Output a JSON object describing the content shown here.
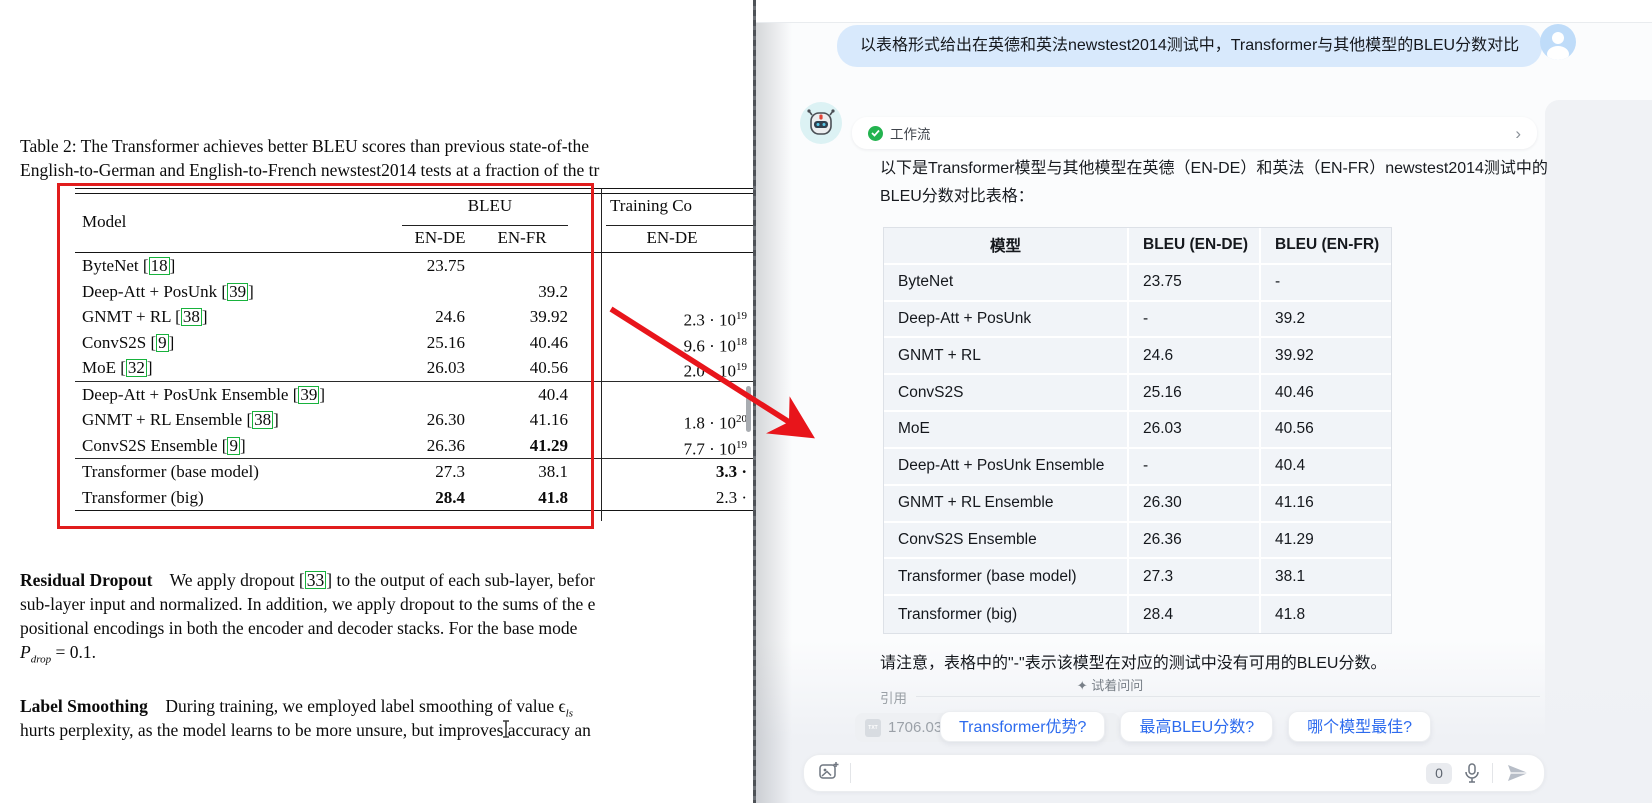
{
  "paper": {
    "caption": [
      "Table 2: The Transformer achieves better BLEU scores than previous state-of-the",
      "English-to-German and English-to-French newstest2014 tests at a fraction of the tr"
    ],
    "table": {
      "model_label": "Model",
      "bleu_label": "BLEU",
      "training_label": "Training Co",
      "subheads": [
        "EN-DE",
        "EN-FR",
        "EN-DE"
      ],
      "groups": [
        [
          {
            "m": "ByteNet",
            "c": "18",
            "d": "23.75",
            "f": "",
            "t": "",
            "e": ""
          },
          {
            "m": "Deep-Att + PosUnk",
            "c": "39",
            "d": "",
            "f": "39.2",
            "t": "",
            "e": ""
          },
          {
            "m": "GNMT + RL",
            "c": "38",
            "d": "24.6",
            "f": "39.92",
            "t": "2.3 · 10",
            "e": "19"
          },
          {
            "m": "ConvS2S",
            "c": "9",
            "d": "25.16",
            "f": "40.46",
            "t": "9.6 · 10",
            "e": "18"
          },
          {
            "m": "MoE",
            "c": "32",
            "d": "26.03",
            "f": "40.56",
            "t": "2.0 · 10",
            "e": "19"
          }
        ],
        [
          {
            "m": "Deep-Att + PosUnk Ensemble",
            "c": "39",
            "d": "",
            "f": "40.4",
            "t": "",
            "e": ""
          },
          {
            "m": "GNMT + RL Ensemble",
            "c": "38",
            "d": "26.30",
            "f": "41.16",
            "t": "1.8 · 10",
            "e": "20"
          },
          {
            "m": "ConvS2S Ensemble",
            "c": "9",
            "d": "26.36",
            "f": "41.29",
            "fb": 1,
            "t": "7.7 · 10",
            "e": "19"
          }
        ],
        [
          {
            "m": "Transformer (base model)",
            "c": "",
            "d": "27.3",
            "f": "38.1",
            "t": "3.3 ·",
            "tb": 1,
            "e": ""
          },
          {
            "m": "Transformer (big)",
            "c": "",
            "d": "28.4",
            "db": 1,
            "f": "41.8",
            "fb": 1,
            "t": "2.3 ·",
            "e": ""
          }
        ]
      ]
    },
    "residual": {
      "head": "Residual Dropout",
      "l1a": "We apply dropout [",
      "cite": "33",
      "l1b": "] to the output of each sub-layer, befor",
      "l2": "sub-layer input and normalized. In addition, we apply dropout to the sums of the e",
      "l3": "positional encodings in both the encoder and decoder stacks. For the base mode",
      "l4a": "P",
      "l4sub": "drop",
      "l4b": " = 0.1."
    },
    "label_smoothing": {
      "head": "Label Smoothing",
      "l1": "During training, we employed label smoothing of value ϵ",
      "l1sub": "ls",
      "l2": "hurts perplexity, as the model learns to be more unsure, but improves accuracy an"
    }
  },
  "chat": {
    "user_message": "以表格形式给出在英德和英法newstest2014测试中，Transformer与其他模型的BLEU分数对比",
    "workflow_label": "工作流",
    "chevron": "›",
    "intro_line1": "以下是Transformer模型与其他模型在英德（EN-DE）和英法（EN-FR）newstest2014测试中的",
    "intro_line2": "BLEU分数对比表格：",
    "table": {
      "headers": [
        "模型",
        "BLEU (EN-DE)",
        "BLEU (EN-FR)"
      ],
      "rows": [
        [
          "ByteNet",
          "23.75",
          "-"
        ],
        [
          "Deep-Att + PosUnk",
          "-",
          "39.2"
        ],
        [
          "GNMT + RL",
          "24.6",
          "39.92"
        ],
        [
          "ConvS2S",
          "25.16",
          "40.46"
        ],
        [
          "MoE",
          "26.03",
          "40.56"
        ],
        [
          "Deep-Att + PosUnk Ensemble",
          "-",
          "40.4"
        ],
        [
          "GNMT + RL Ensemble",
          "26.30",
          "41.16"
        ],
        [
          "ConvS2S Ensemble",
          "26.36",
          "41.29"
        ],
        [
          "Transformer (base model)",
          "27.3",
          "38.1"
        ],
        [
          "Transformer (big)",
          "28.4",
          "41.8"
        ]
      ]
    },
    "note": "请注意，表格中的\"-\"表示该模型在对应的测试中没有可用的BLEU分数。",
    "try_ask": "✦ 试着问问",
    "citation_label": "引用",
    "citation_file": "1706.0376",
    "file_badge": "TXT",
    "suggestions": [
      "Transformer优势?",
      "最高BLEU分数?",
      "哪个模型最佳?"
    ],
    "input": {
      "count": "0",
      "value": ""
    }
  }
}
